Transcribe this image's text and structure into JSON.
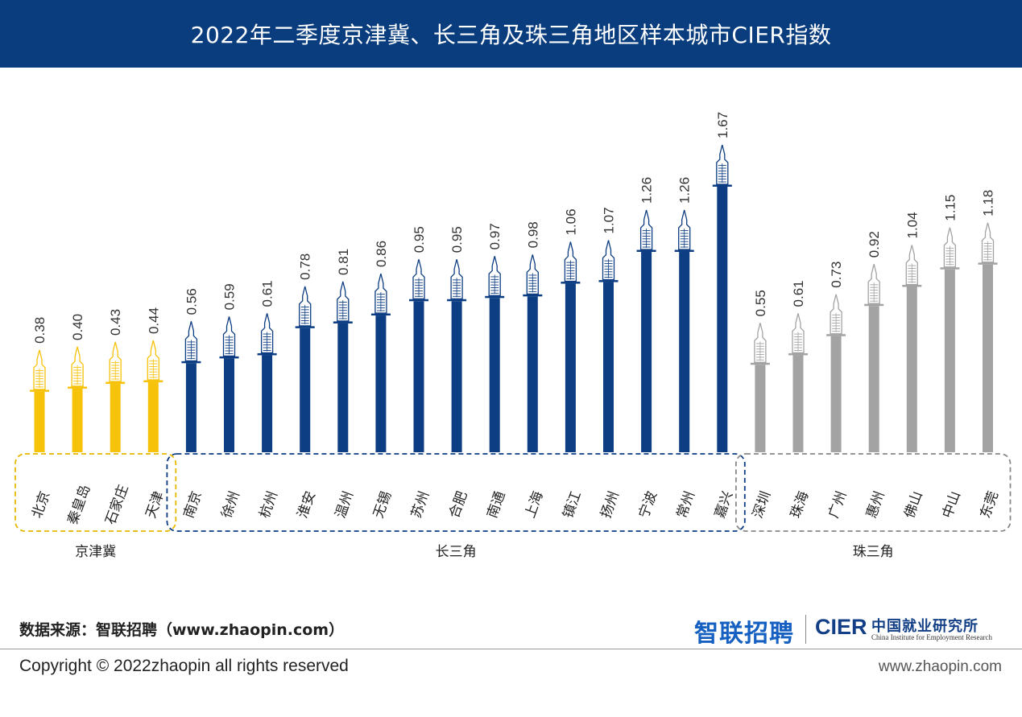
{
  "header": {
    "title": "2022年二季度京津冀、长三角及珠三角地区样本城市CIER指数"
  },
  "chart_data": {
    "type": "bar",
    "title": "2022年二季度京津冀、长三角及珠三角地区样本城市CIER指数",
    "ylim": [
      0,
      1.8
    ],
    "groups": [
      {
        "name": "京津冀",
        "color": "#f7c20a",
        "cities": [
          "北京",
          "秦皇岛",
          "石家庄",
          "天津"
        ],
        "values": [
          0.38,
          0.4,
          0.43,
          0.44
        ]
      },
      {
        "name": "长三角",
        "color": "#0d3d82",
        "cities": [
          "南京",
          "徐州",
          "杭州",
          "淮安",
          "温州",
          "无锡",
          "苏州",
          "合肥",
          "南通",
          "上海",
          "镇江",
          "扬州",
          "宁波",
          "常州",
          "嘉兴"
        ],
        "values": [
          0.56,
          0.59,
          0.61,
          0.78,
          0.81,
          0.86,
          0.95,
          0.95,
          0.97,
          0.98,
          1.06,
          1.07,
          1.26,
          1.26,
          1.67
        ]
      },
      {
        "name": "珠三角",
        "color": "#a3a3a3",
        "cities": [
          "深圳",
          "珠海",
          "广州",
          "惠州",
          "佛山",
          "中山",
          "东莞"
        ],
        "values": [
          0.55,
          0.61,
          0.73,
          0.92,
          1.04,
          1.15,
          1.18
        ]
      }
    ],
    "value_labels": [
      [
        "0.38",
        "0.40",
        "0.43",
        "0.44"
      ],
      [
        "0.56",
        "0.59",
        "0.61",
        "0.78",
        "0.81",
        "0.86",
        "0.95",
        "0.95",
        "0.97",
        "0.98",
        "1.06",
        "1.07",
        "1.26",
        "1.26",
        "1.67"
      ],
      [
        "0.55",
        "0.61",
        "0.73",
        "0.92",
        "1.04",
        "1.15",
        "1.18"
      ]
    ]
  },
  "footer": {
    "source": "数据来源：智联招聘（www.zhaopin.com）",
    "logo_zhilian": "智联招聘",
    "logo_cier": "CIER",
    "logo_cier_cn": "中国就业研究所",
    "logo_cier_en": "China Institute for Employment Research",
    "copyright": "Copyright ©  2022zhaopin all rights reserved",
    "website": "www.zhaopin.com"
  }
}
